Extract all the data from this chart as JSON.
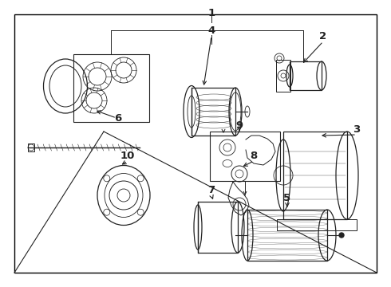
{
  "bg_color": "#ffffff",
  "line_color": "#222222",
  "label_color": "#000000",
  "label_fontsize": 8.5,
  "fig_width": 4.9,
  "fig_height": 3.6,
  "dpi": 100
}
